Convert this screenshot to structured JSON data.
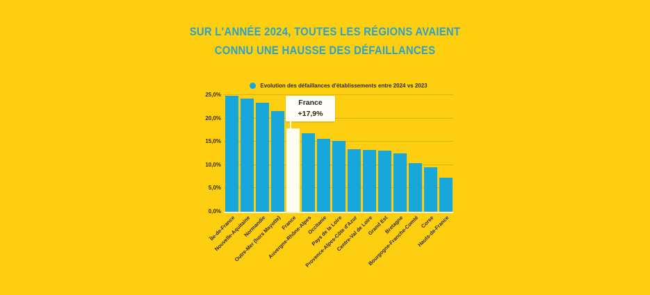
{
  "title": {
    "line1": "SUR L'ANNÉE 2024, TOUTES LES RÉGIONS AVAIENT",
    "line2": "CONNU UNE HAUSSE DES DÉFAILLANCES"
  },
  "legend": {
    "label": "Evolution des défaillances d'établissements entre 2024 vs 2023"
  },
  "callout": {
    "region": "France",
    "value": "+17,9%"
  },
  "colors": {
    "background": "#fecf10",
    "bar": "#18a7da",
    "barhl": "#fffdf2",
    "title": "#2ba2c6",
    "ink": "#33290f",
    "grid": "rgba(140,100,0,0.28)",
    "baseline": "#f3efd9",
    "callout": "#fffef6"
  },
  "chart_data": {
    "type": "bar",
    "title": "Sur l'année 2024, toutes les régions avaient connu une hausse des défaillances",
    "legend": [
      "Evolution des défaillances d'établissements entre 2024 vs 2023"
    ],
    "legend_position": "top",
    "categories": [
      "Île-de-France",
      "Nouvelle-Aquitaine",
      "Normandie",
      "Outre-Mer (hors Mayotte)",
      "France",
      "Auvergne-Rhône-Alpes",
      "Occitanie",
      "Pays de la Loire",
      "Provence-Alpes-Côte d'Azur",
      "Centre-Val de Loire",
      "Grand Est",
      "Bretagne",
      "Bourgogne-Franche-Comté",
      "Corse",
      "Hauts-de-France"
    ],
    "values": [
      24.9,
      24.2,
      23.4,
      21.6,
      17.9,
      16.8,
      15.7,
      15.2,
      13.4,
      13.3,
      13.1,
      12.5,
      10.4,
      9.6,
      7.3
    ],
    "unit": "%",
    "highlight": {
      "index": 4,
      "label": "France",
      "value_label": "+17,9%"
    },
    "ylim": [
      0,
      25
    ],
    "ytick_values": [
      0,
      5,
      10,
      15,
      20,
      25
    ],
    "ytick_labels": [
      "0,0%",
      "5,0%",
      "10,0%",
      "15,0%",
      "20,0%",
      "25,0%"
    ],
    "grid": true,
    "xlabel": "",
    "ylabel": ""
  }
}
